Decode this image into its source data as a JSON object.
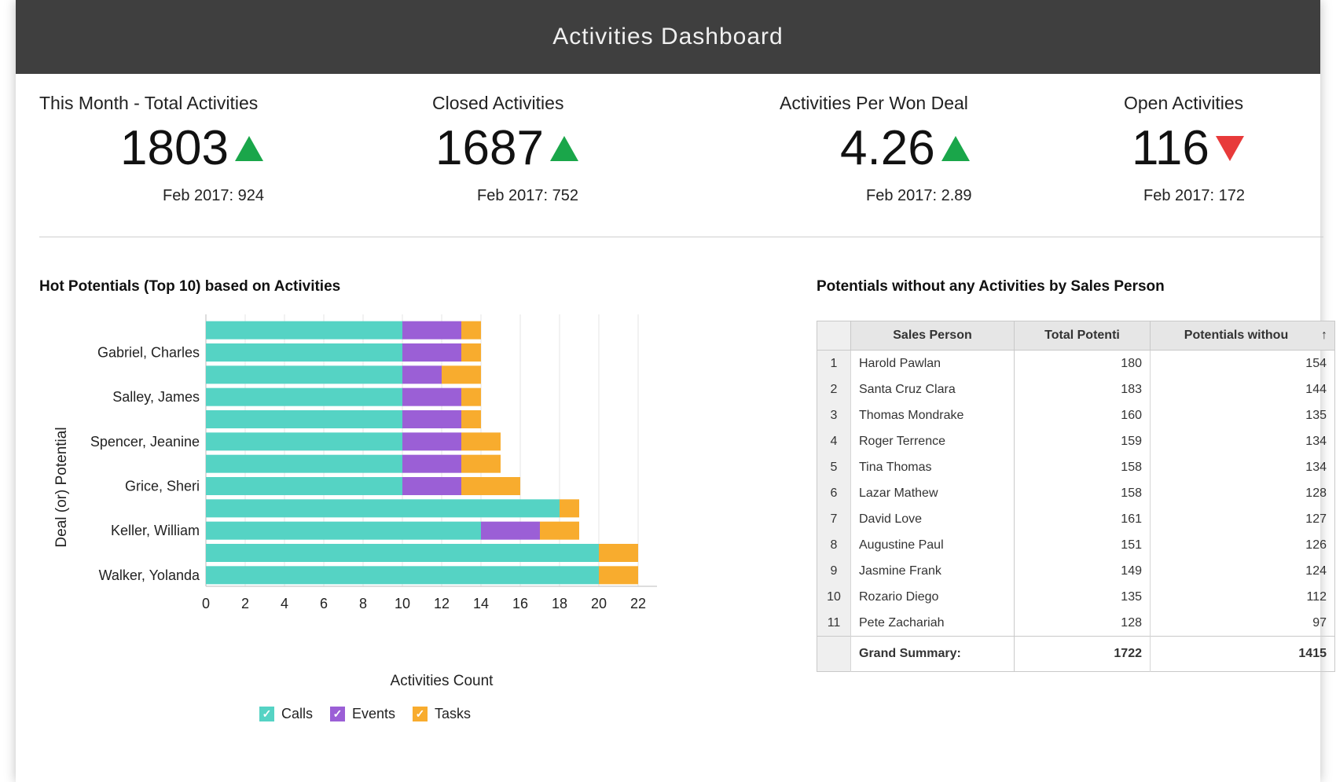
{
  "header": {
    "title": "Activities Dashboard"
  },
  "kpis": [
    {
      "label": "This Month - Total Activities",
      "value": "1803",
      "trend": "up",
      "sub": "Feb 2017: 924"
    },
    {
      "label": "Closed Activities",
      "value": "1687",
      "trend": "up",
      "sub": "Feb 2017: 752"
    },
    {
      "label": "Activities Per Won Deal",
      "value": "4.26",
      "trend": "up",
      "sub": "Feb 2017: 2.89"
    },
    {
      "label": "Open Activities",
      "value": "116",
      "trend": "down",
      "sub": "Feb 2017: 172"
    }
  ],
  "colors": {
    "calls": "#55d3c4",
    "events": "#9b5fd6",
    "tasks": "#f8ac2e",
    "up": "#1aa64a",
    "down": "#e83a3a"
  },
  "chart_data": {
    "type": "bar",
    "orientation": "horizontal",
    "stacked": true,
    "title": "Hot Potentials (Top 10) based on Activities",
    "xlabel": "Activities Count",
    "ylabel": "Deal (or) Potential",
    "xlim": [
      0,
      22
    ],
    "xticks": [
      "0",
      "2",
      "4",
      "6",
      "8",
      "10",
      "12",
      "14",
      "16",
      "18",
      "20",
      "22"
    ],
    "grid": true,
    "legend_position": "bottom",
    "category_labels": [
      "",
      "Gabriel, Charles",
      "",
      "Salley, James",
      "",
      "Spencer, Jeanine",
      "",
      "Grice, Sheri",
      "",
      "Keller, William",
      "",
      "Walker, Yolanda"
    ],
    "series": [
      {
        "name": "Calls",
        "values": [
          10,
          10,
          10,
          10,
          10,
          10,
          10,
          10,
          18,
          14,
          20,
          20
        ]
      },
      {
        "name": "Events",
        "values": [
          3,
          3,
          2,
          3,
          3,
          3,
          3,
          3,
          0,
          3,
          0,
          0
        ]
      },
      {
        "name": "Tasks",
        "values": [
          1,
          1,
          2,
          1,
          1,
          2,
          2,
          3,
          1,
          2,
          2,
          2
        ]
      }
    ]
  },
  "table": {
    "title": "Potentials without any Activities by Sales Person",
    "columns": [
      "Sales Person",
      "Total Potenti",
      "Potentials withou"
    ],
    "sort_icon": "sort-arrow-up-icon",
    "rows": [
      {
        "idx": "1",
        "name": "Harold Pawlan",
        "total": "180",
        "without": "154"
      },
      {
        "idx": "2",
        "name": "Santa Cruz Clara",
        "total": "183",
        "without": "144"
      },
      {
        "idx": "3",
        "name": "Thomas Mondrake",
        "total": "160",
        "without": "135"
      },
      {
        "idx": "4",
        "name": "Roger Terrence",
        "total": "159",
        "without": "134"
      },
      {
        "idx": "5",
        "name": "Tina Thomas",
        "total": "158",
        "without": "134"
      },
      {
        "idx": "6",
        "name": "Lazar Mathew",
        "total": "158",
        "without": "128"
      },
      {
        "idx": "7",
        "name": "David Love",
        "total": "161",
        "without": "127"
      },
      {
        "idx": "8",
        "name": "Augustine Paul",
        "total": "151",
        "without": "126"
      },
      {
        "idx": "9",
        "name": "Jasmine Frank",
        "total": "149",
        "without": "124"
      },
      {
        "idx": "10",
        "name": "Rozario Diego",
        "total": "135",
        "without": "112"
      },
      {
        "idx": "11",
        "name": "Pete Zachariah",
        "total": "128",
        "without": "97"
      }
    ],
    "summary": {
      "label": "Grand Summary:",
      "total": "1722",
      "without": "1415"
    }
  }
}
